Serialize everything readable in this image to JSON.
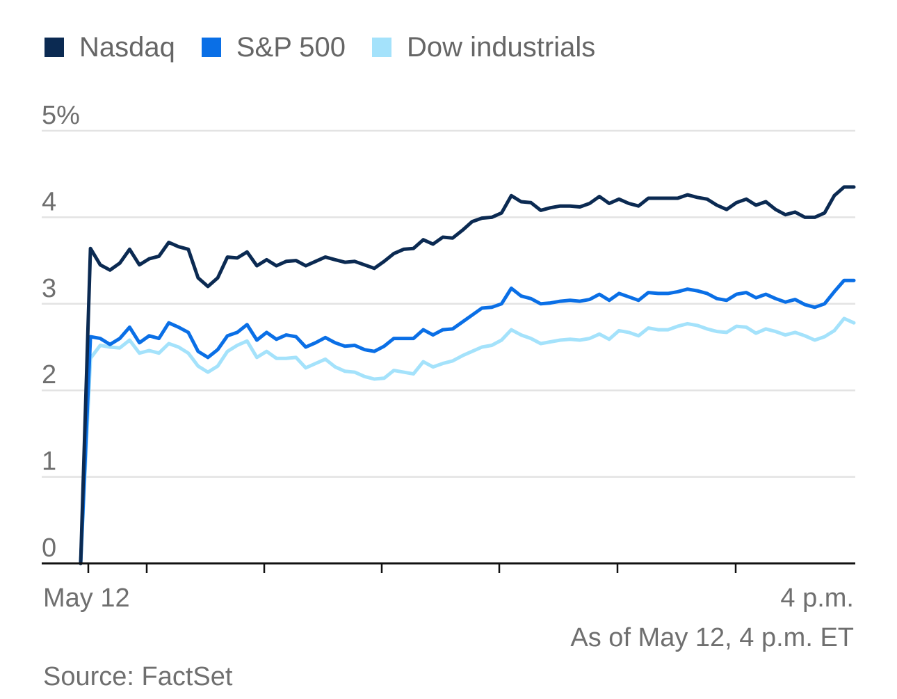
{
  "legend": [
    {
      "label": "Nasdaq",
      "color": "#0b2a52"
    },
    {
      "label": "S&P 500",
      "color": "#0a6fe6"
    },
    {
      "label": "Dow industrials",
      "color": "#a4e2fb"
    }
  ],
  "footer": {
    "timestamp": "As of May 12, 4 p.m. ET",
    "source": "Source: FactSet"
  },
  "chart_data": {
    "type": "line",
    "title": "",
    "xlabel": "",
    "ylabel": "",
    "ylim": [
      0,
      5
    ],
    "y_ticks": [
      {
        "value": 0,
        "label": "0"
      },
      {
        "value": 1,
        "label": "1"
      },
      {
        "value": 2,
        "label": "2"
      },
      {
        "value": 3,
        "label": "3"
      },
      {
        "value": 4,
        "label": "4"
      },
      {
        "value": 5,
        "label": "5%"
      }
    ],
    "x_labels": {
      "start": "May 12",
      "end": "4 p.m."
    },
    "grid": true,
    "legend_position": "top-left",
    "series": [
      {
        "name": "Nasdaq",
        "color": "#0b2a52",
        "values": [
          0.0,
          3.64,
          3.45,
          3.39,
          3.47,
          3.63,
          3.45,
          3.52,
          3.55,
          3.71,
          3.66,
          3.63,
          3.3,
          3.2,
          3.3,
          3.54,
          3.53,
          3.6,
          3.44,
          3.51,
          3.44,
          3.49,
          3.5,
          3.44,
          3.49,
          3.54,
          3.51,
          3.48,
          3.49,
          3.45,
          3.41,
          3.49,
          3.58,
          3.63,
          3.64,
          3.74,
          3.69,
          3.77,
          3.76,
          3.85,
          3.95,
          3.99,
          4.0,
          4.05,
          4.25,
          4.18,
          4.17,
          4.08,
          4.11,
          4.13,
          4.13,
          4.12,
          4.16,
          4.24,
          4.16,
          4.21,
          4.16,
          4.13,
          4.22,
          4.22,
          4.22,
          4.22,
          4.26,
          4.23,
          4.21,
          4.14,
          4.09,
          4.17,
          4.21,
          4.14,
          4.18,
          4.09,
          4.03,
          4.06,
          4.0,
          4.0,
          4.05,
          4.25,
          4.35,
          4.35
        ]
      },
      {
        "name": "S&P 500",
        "color": "#0a6fe6",
        "values": [
          0.0,
          2.62,
          2.6,
          2.53,
          2.6,
          2.73,
          2.55,
          2.63,
          2.6,
          2.78,
          2.73,
          2.67,
          2.45,
          2.38,
          2.47,
          2.63,
          2.67,
          2.76,
          2.58,
          2.67,
          2.59,
          2.64,
          2.62,
          2.5,
          2.55,
          2.61,
          2.55,
          2.51,
          2.52,
          2.47,
          2.45,
          2.51,
          2.6,
          2.6,
          2.6,
          2.7,
          2.64,
          2.7,
          2.71,
          2.79,
          2.87,
          2.95,
          2.96,
          3.0,
          3.18,
          3.09,
          3.06,
          3.0,
          3.01,
          3.03,
          3.04,
          3.03,
          3.05,
          3.11,
          3.04,
          3.12,
          3.08,
          3.04,
          3.13,
          3.12,
          3.12,
          3.14,
          3.17,
          3.15,
          3.12,
          3.06,
          3.04,
          3.11,
          3.13,
          3.07,
          3.11,
          3.06,
          3.02,
          3.05,
          2.99,
          2.96,
          3.0,
          3.14,
          3.27,
          3.27
        ]
      },
      {
        "name": "Dow industrials",
        "color": "#a4e2fb",
        "values": [
          0.0,
          2.37,
          2.52,
          2.5,
          2.49,
          2.58,
          2.43,
          2.46,
          2.43,
          2.54,
          2.5,
          2.43,
          2.28,
          2.21,
          2.28,
          2.45,
          2.52,
          2.57,
          2.38,
          2.45,
          2.37,
          2.37,
          2.38,
          2.26,
          2.31,
          2.36,
          2.27,
          2.22,
          2.21,
          2.16,
          2.13,
          2.14,
          2.23,
          2.21,
          2.19,
          2.33,
          2.27,
          2.31,
          2.34,
          2.4,
          2.45,
          2.5,
          2.52,
          2.58,
          2.7,
          2.64,
          2.6,
          2.54,
          2.56,
          2.58,
          2.59,
          2.58,
          2.6,
          2.65,
          2.59,
          2.69,
          2.67,
          2.63,
          2.72,
          2.7,
          2.7,
          2.74,
          2.77,
          2.75,
          2.71,
          2.68,
          2.67,
          2.74,
          2.73,
          2.66,
          2.71,
          2.68,
          2.64,
          2.67,
          2.63,
          2.58,
          2.62,
          2.69,
          2.83,
          2.78
        ]
      }
    ]
  }
}
